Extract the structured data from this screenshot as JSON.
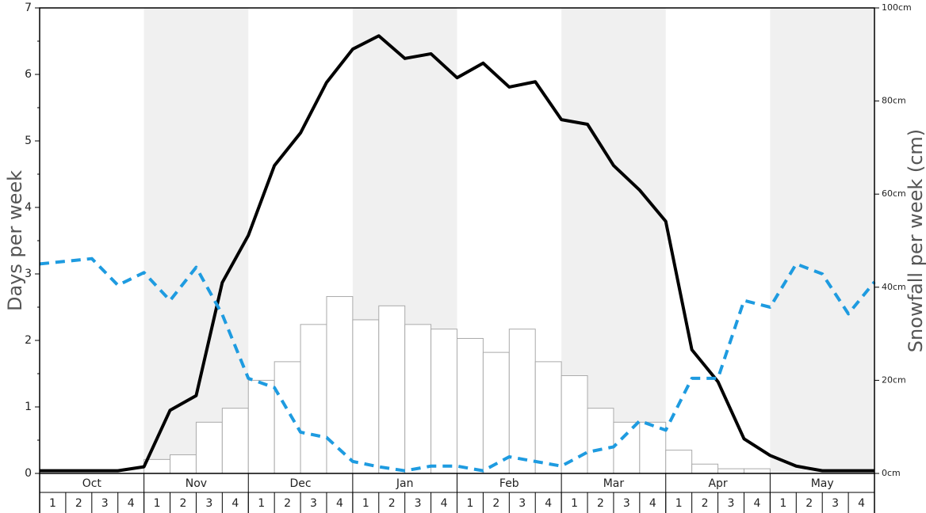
{
  "chart_data": {
    "type": "combo",
    "ylabel": "Days per week",
    "y2label": "Snowfall per week (cm)",
    "months": [
      "Oct",
      "Nov",
      "Dec",
      "Jan",
      "Feb",
      "Mar",
      "Apr",
      "May"
    ],
    "week_labels": [
      "1",
      "2",
      "3",
      "4"
    ],
    "band_color": "#f0f0f0",
    "ylim": [
      0,
      7
    ],
    "yticks": [
      0,
      1,
      2,
      3,
      4,
      5,
      6,
      7
    ],
    "y2lim": [
      0,
      100
    ],
    "y2ticks": [
      {
        "value": 0,
        "label": "0cm"
      },
      {
        "value": 20,
        "label": "20cm"
      },
      {
        "value": 40,
        "label": "40cm"
      },
      {
        "value": 60,
        "label": "60cm"
      },
      {
        "value": 80,
        "label": "80cm"
      },
      {
        "value": 100,
        "label": "100cm"
      }
    ],
    "series": [
      {
        "kind": "bar",
        "axis": "y2",
        "color": "#ffffff",
        "stroke": "#aaaaaa",
        "values": [
          0,
          0,
          0,
          0,
          3,
          4,
          11,
          14,
          20,
          24,
          32,
          38,
          33,
          36,
          32,
          31,
          29,
          26,
          31,
          24,
          21,
          14,
          11,
          11,
          5,
          2,
          1,
          1,
          0,
          0,
          0,
          0
        ]
      },
      {
        "kind": "line",
        "color": "#000000",
        "values": [
          0.04,
          0.04,
          0.04,
          0.04,
          0.1,
          0.95,
          1.17,
          2.87,
          3.58,
          4.63,
          5.12,
          5.88,
          6.38,
          6.58,
          6.24,
          6.31,
          5.95,
          6.17,
          5.81,
          5.89,
          5.32,
          5.25,
          4.63,
          4.26,
          3.79,
          1.86,
          1.38,
          0.52,
          0.27,
          0.11,
          0.04,
          0.04,
          0.04
        ]
      },
      {
        "kind": "line",
        "color": "#1e9be0",
        "dashed": true,
        "values": [
          3.15,
          3.19,
          3.23,
          2.83,
          3.02,
          2.6,
          3.1,
          2.39,
          1.43,
          1.29,
          0.62,
          0.54,
          0.18,
          0.1,
          0.04,
          0.11,
          0.11,
          0.04,
          0.25,
          0.18,
          0.11,
          0.32,
          0.4,
          0.79,
          0.65,
          1.43,
          1.43,
          2.6,
          2.5,
          3.15,
          3.0,
          2.4,
          2.88
        ]
      }
    ]
  }
}
